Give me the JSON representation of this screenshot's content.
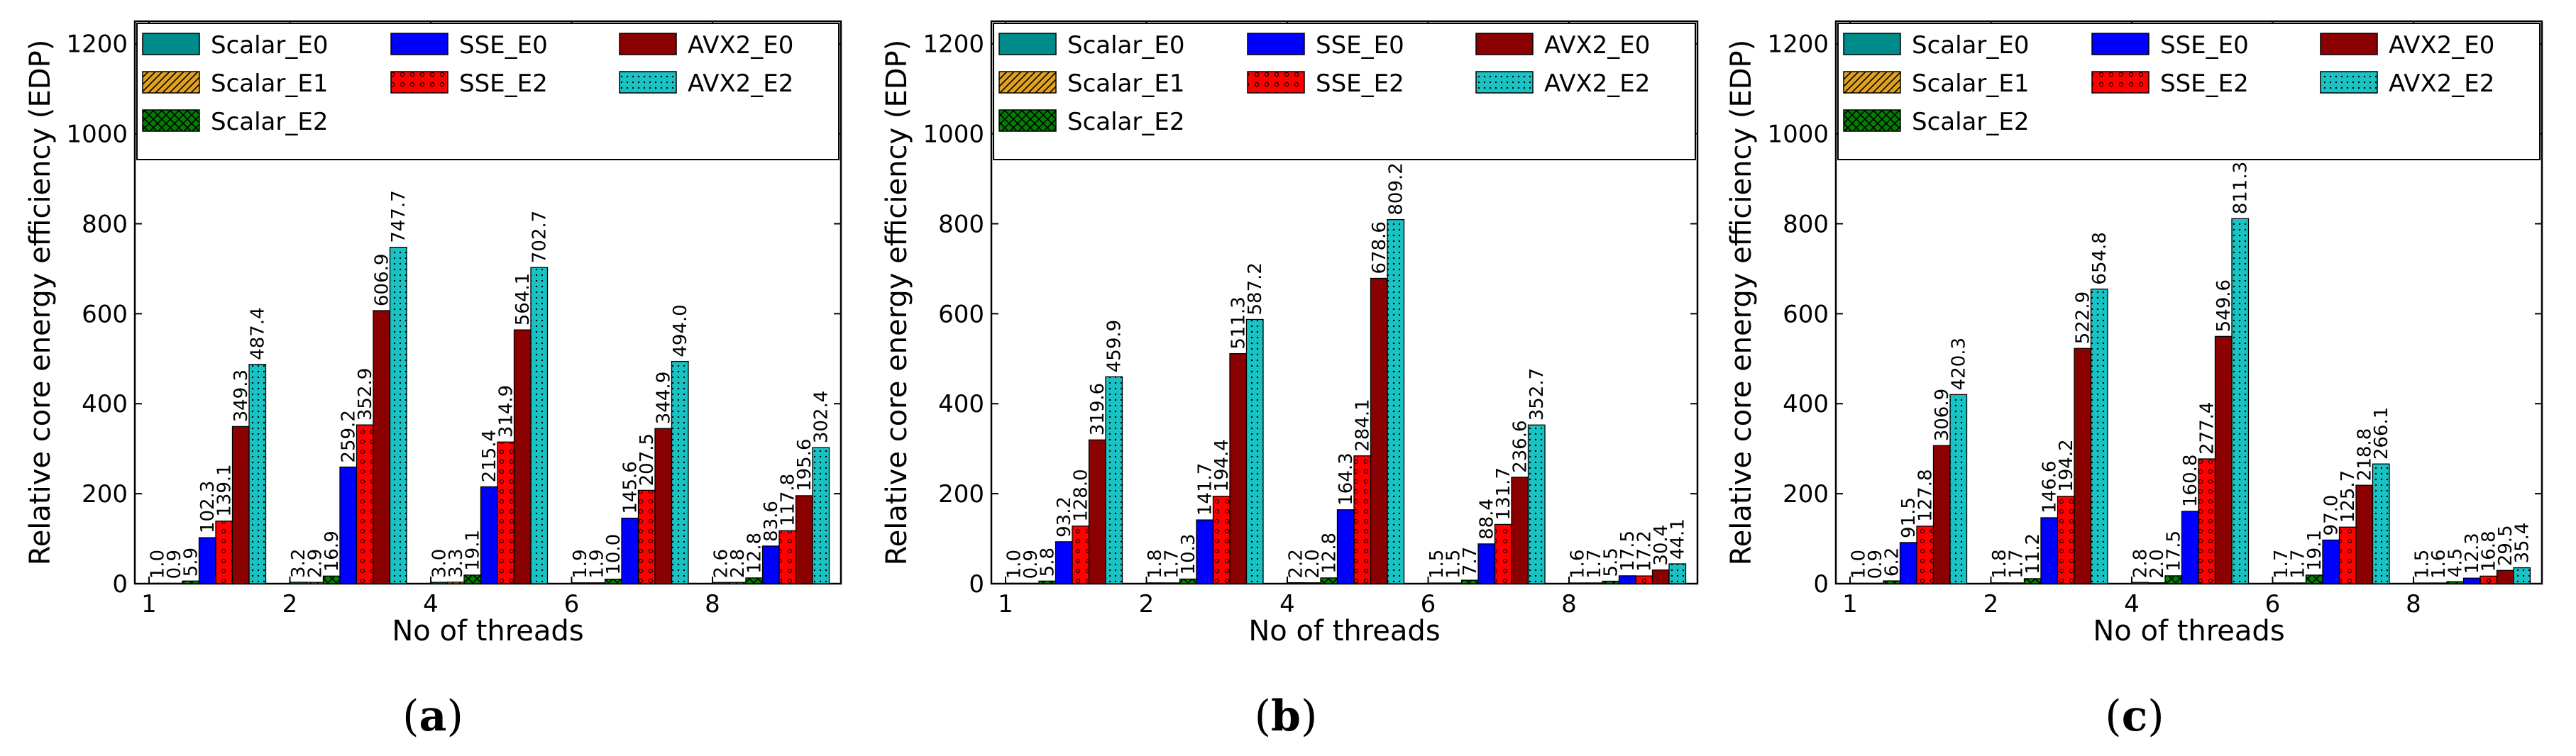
{
  "chart_data": [
    {
      "type": "bar",
      "panel_label": "a",
      "caption": "(a)",
      "xlabel": "No of threads",
      "ylabel": "Relative core energy efficiency (EDP)",
      "categories": [
        "1",
        "2",
        "4",
        "6",
        "8"
      ],
      "ylim": [
        0,
        1250
      ],
      "yticks": [
        0,
        200,
        400,
        600,
        800,
        1000,
        1200
      ],
      "legend_position": "top",
      "series": [
        {
          "name": "Scalar_E0",
          "values": [
            1.0,
            3.2,
            3.0,
            1.9,
            2.6
          ]
        },
        {
          "name": "Scalar_E1",
          "values": [
            0.9,
            2.9,
            3.3,
            1.9,
            2.8
          ]
        },
        {
          "name": "Scalar_E2",
          "values": [
            5.9,
            16.9,
            19.1,
            10.0,
            12.8
          ]
        },
        {
          "name": "SSE_E0",
          "values": [
            102.3,
            259.2,
            215.4,
            145.6,
            83.6
          ]
        },
        {
          "name": "SSE_E2",
          "values": [
            139.1,
            352.9,
            314.9,
            207.5,
            117.8
          ]
        },
        {
          "name": "AVX2_E0",
          "values": [
            349.3,
            606.9,
            564.1,
            344.9,
            195.6
          ]
        },
        {
          "name": "AVX2_E2",
          "values": [
            487.4,
            747.7,
            702.7,
            494.0,
            302.4
          ]
        }
      ]
    },
    {
      "type": "bar",
      "panel_label": "b",
      "caption": "(b)",
      "xlabel": "No of threads",
      "ylabel": "Relative core energy efficiency (EDP)",
      "categories": [
        "1",
        "2",
        "4",
        "6",
        "8"
      ],
      "ylim": [
        0,
        1250
      ],
      "yticks": [
        0,
        200,
        400,
        600,
        800,
        1000,
        1200
      ],
      "legend_position": "top",
      "series": [
        {
          "name": "Scalar_E0",
          "values": [
            1.0,
            1.8,
            2.2,
            1.5,
            1.6
          ]
        },
        {
          "name": "Scalar_E1",
          "values": [
            0.9,
            1.7,
            2.0,
            1.5,
            1.7
          ]
        },
        {
          "name": "Scalar_E2",
          "values": [
            5.8,
            10.3,
            12.8,
            7.7,
            5.5
          ]
        },
        {
          "name": "SSE_E0",
          "values": [
            93.2,
            141.7,
            164.3,
            88.4,
            17.5
          ]
        },
        {
          "name": "SSE_E2",
          "values": [
            128.0,
            194.4,
            284.1,
            131.7,
            17.2
          ]
        },
        {
          "name": "AVX2_E0",
          "values": [
            319.6,
            511.3,
            678.6,
            236.6,
            30.4
          ]
        },
        {
          "name": "AVX2_E2",
          "values": [
            459.9,
            587.2,
            809.2,
            352.7,
            44.1
          ]
        }
      ]
    },
    {
      "type": "bar",
      "panel_label": "c",
      "caption": "(c)",
      "xlabel": "No of threads",
      "ylabel": "Relative core energy efficiency (EDP)",
      "categories": [
        "1",
        "2",
        "4",
        "6",
        "8"
      ],
      "ylim": [
        0,
        1250
      ],
      "yticks": [
        0,
        200,
        400,
        600,
        800,
        1000,
        1200
      ],
      "legend_position": "top",
      "series": [
        {
          "name": "Scalar_E0",
          "values": [
            1.0,
            1.8,
            2.8,
            1.7,
            1.5
          ]
        },
        {
          "name": "Scalar_E1",
          "values": [
            0.9,
            1.7,
            2.0,
            1.7,
            1.6
          ]
        },
        {
          "name": "Scalar_E2",
          "values": [
            6.2,
            11.2,
            17.5,
            19.1,
            4.5
          ]
        },
        {
          "name": "SSE_E0",
          "values": [
            91.5,
            146.6,
            160.8,
            97.0,
            12.3
          ]
        },
        {
          "name": "SSE_E2",
          "values": [
            127.8,
            194.2,
            277.4,
            125.7,
            16.8
          ]
        },
        {
          "name": "AVX2_E0",
          "values": [
            306.9,
            522.9,
            549.6,
            218.8,
            29.5
          ]
        },
        {
          "name": "AVX2_E2",
          "values": [
            420.3,
            654.8,
            811.3,
            266.1,
            35.4
          ]
        }
      ]
    }
  ],
  "series_colors": [
    "#008b8b",
    "#e0a21e",
    "#008000",
    "#0000ff",
    "#ff0000",
    "#8b0000",
    "#1ac3c3"
  ]
}
